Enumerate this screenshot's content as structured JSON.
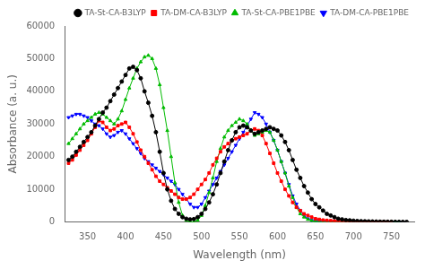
{
  "chart_data": {
    "type": "line",
    "xlabel": "Wavelength (nm)",
    "ylabel": "Absorbance (a. u.)",
    "x": [
      325,
      330,
      335,
      340,
      345,
      350,
      355,
      360,
      365,
      370,
      375,
      380,
      385,
      390,
      395,
      400,
      405,
      410,
      415,
      420,
      425,
      430,
      435,
      440,
      445,
      450,
      455,
      460,
      465,
      470,
      475,
      480,
      485,
      490,
      495,
      500,
      505,
      510,
      515,
      520,
      525,
      530,
      535,
      540,
      545,
      550,
      555,
      560,
      565,
      570,
      575,
      580,
      585,
      590,
      595,
      600,
      605,
      610,
      615,
      620,
      625,
      630,
      635,
      640,
      645,
      650,
      655,
      660,
      665,
      670,
      675,
      680,
      685,
      690,
      695,
      700,
      705,
      710,
      715,
      720,
      725,
      730,
      735,
      740,
      745,
      750,
      755,
      760,
      765,
      770,
      775,
      780
    ],
    "series": [
      {
        "name": "TA-St-CA-B3LYP",
        "color": "#000000",
        "marker": "circle",
        "values": [
          19000,
          20000,
          21500,
          23000,
          24500,
          26000,
          27500,
          29500,
          31500,
          33500,
          35000,
          37000,
          39000,
          41000,
          43000,
          45000,
          47000,
          47500,
          46500,
          44000,
          40000,
          36500,
          32500,
          27500,
          21500,
          15000,
          10000,
          6500,
          4000,
          2500,
          1500,
          1000,
          800,
          900,
          1500,
          2500,
          4000,
          6000,
          8500,
          11500,
          15000,
          18500,
          22000,
          25000,
          27500,
          29000,
          29500,
          29000,
          28000,
          27000,
          27500,
          28000,
          28500,
          29000,
          28500,
          28000,
          26500,
          24500,
          22000,
          19000,
          16000,
          13500,
          11000,
          9000,
          7000,
          5500,
          4500,
          3500,
          2500,
          2000,
          1500,
          1000,
          800,
          600,
          500,
          400,
          300,
          250,
          200,
          180,
          150,
          130,
          100,
          90,
          70,
          60,
          50,
          40,
          30,
          20,
          null,
          null
        ]
      },
      {
        "name": "TA-DM-CA-B3LYP",
        "color": "#ff0000",
        "marker": "square",
        "values": [
          18000,
          19000,
          20500,
          22000,
          23500,
          25000,
          27000,
          29000,
          31000,
          30500,
          29000,
          28000,
          28500,
          29500,
          30000,
          30500,
          29000,
          27000,
          24500,
          22000,
          20000,
          18000,
          16000,
          14000,
          12500,
          11500,
          10500,
          9500,
          8500,
          7500,
          7000,
          7000,
          7500,
          8500,
          10000,
          11500,
          13000,
          15000,
          17500,
          19500,
          21500,
          23000,
          24000,
          25000,
          25500,
          26000,
          26500,
          27000,
          28000,
          28500,
          28000,
          26500,
          24000,
          21000,
          18000,
          15000,
          12500,
          10000,
          8000,
          6000,
          4500,
          3500,
          2500,
          2000,
          1500,
          1000,
          800,
          600,
          500,
          400,
          300,
          250,
          200,
          150,
          120,
          100,
          80,
          70,
          60,
          50,
          40,
          30,
          25,
          20,
          15,
          10,
          null,
          null,
          null,
          null,
          null,
          null
        ]
      },
      {
        "name": "TA-St-CA-PBE1PBE",
        "color": "#00bb00",
        "marker": "triangle-up",
        "values": [
          24000,
          25500,
          27000,
          28500,
          30000,
          31000,
          32000,
          33000,
          33500,
          33000,
          32000,
          31000,
          30000,
          31500,
          34000,
          37500,
          41000,
          44000,
          47000,
          49000,
          50500,
          51000,
          50000,
          47000,
          42000,
          35000,
          28000,
          20000,
          12000,
          6000,
          2000,
          500,
          100,
          50,
          500,
          2000,
          5000,
          9000,
          13500,
          18500,
          22500,
          26000,
          28000,
          29500,
          30500,
          31500,
          31000,
          30000,
          28000,
          26500,
          27000,
          27500,
          28000,
          27500,
          25000,
          22000,
          18500,
          15000,
          11000,
          7500,
          4500,
          2500,
          1500,
          800,
          400,
          200,
          100,
          80,
          60,
          50,
          40,
          30,
          20,
          15,
          12,
          10,
          8,
          6,
          5,
          4,
          3,
          2,
          2,
          1,
          1,
          1,
          0,
          0,
          null,
          null,
          null,
          null
        ]
      },
      {
        "name": "TA-DM-CA-PBE1PBE",
        "color": "#0000ff",
        "marker": "triangle-down",
        "values": [
          32000,
          32500,
          33000,
          33000,
          32500,
          32000,
          31000,
          30000,
          29500,
          28500,
          27000,
          26000,
          26500,
          27500,
          28000,
          27000,
          25500,
          24000,
          22500,
          21000,
          19500,
          18500,
          17500,
          16500,
          15500,
          14500,
          13500,
          12500,
          11500,
          10000,
          8500,
          7000,
          5500,
          4500,
          4500,
          5500,
          7500,
          9500,
          11500,
          13500,
          15500,
          17500,
          19500,
          21500,
          23500,
          25500,
          27500,
          29500,
          31500,
          33500,
          33000,
          32000,
          30000,
          27500,
          25000,
          22000,
          18500,
          15000,
          11500,
          8000,
          5500,
          3500,
          2000,
          1000,
          500,
          300,
          200,
          150,
          100,
          80,
          60,
          40,
          30,
          20,
          15,
          10,
          8,
          6,
          5,
          4,
          3,
          2,
          2,
          1,
          1,
          1,
          0,
          0,
          null,
          null,
          null,
          null
        ]
      }
    ],
    "xlim": [
      320,
      780
    ],
    "ylim": [
      0,
      60000
    ],
    "xticks": [
      350,
      400,
      450,
      500,
      550,
      600,
      650,
      700,
      750
    ],
    "yticks": [
      0,
      10000,
      20000,
      30000,
      40000,
      50000,
      60000
    ],
    "grid": false,
    "legend": "upper right"
  }
}
